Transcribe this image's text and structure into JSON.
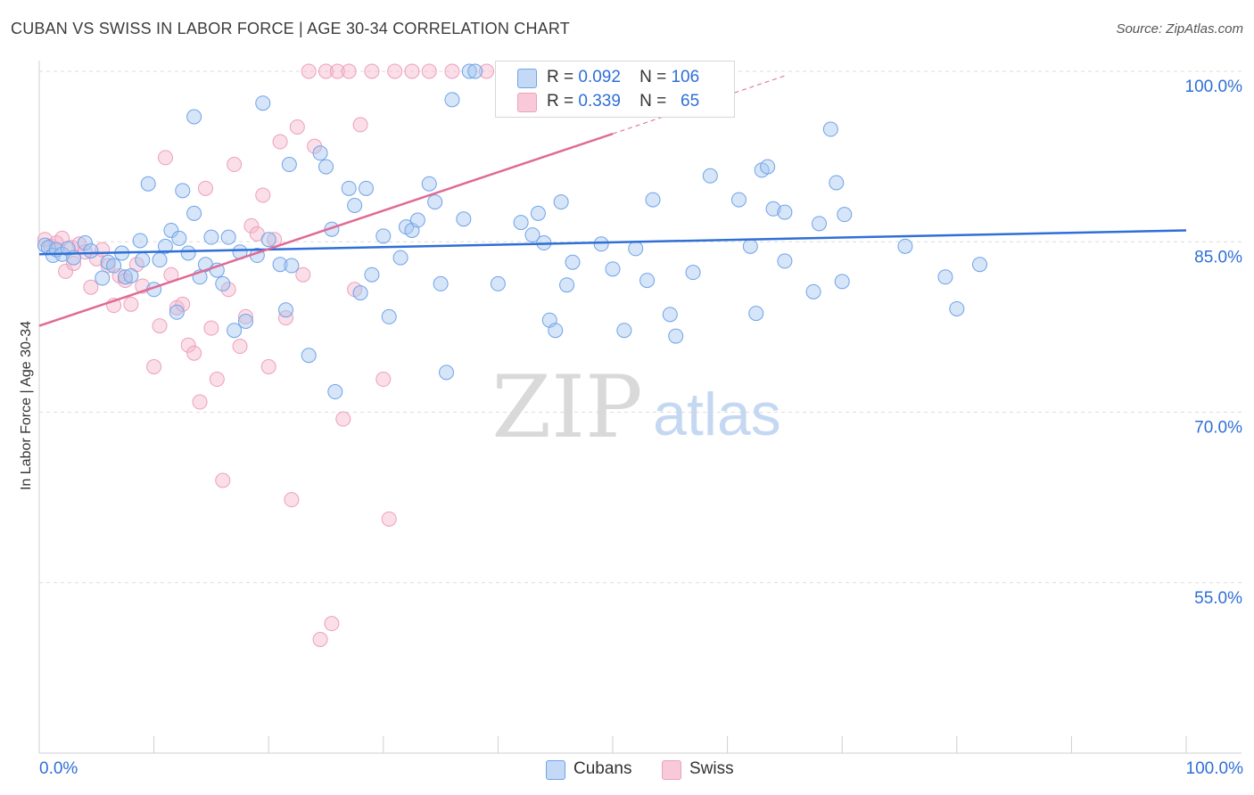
{
  "title": "CUBAN VS SWISS IN LABOR FORCE | AGE 30-34 CORRELATION CHART",
  "source": "Source: ZipAtlas.com",
  "watermark": {
    "zip": "ZIP",
    "atlas": "atlas"
  },
  "legend": {
    "r_label": "R =",
    "n_label": "N =",
    "cubans": {
      "r": "0.092",
      "n": "106"
    },
    "swiss": {
      "r": "0.339",
      "n": "65"
    }
  },
  "chart_data": {
    "type": "scatter",
    "title": "CUBAN VS SWISS IN LABOR FORCE | AGE 30-34 CORRELATION CHART",
    "xlabel": "",
    "ylabel": "In Labor Force | Age 30-34",
    "xlim": [
      0,
      100
    ],
    "ylim": [
      40,
      100
    ],
    "x_tick_labels": {
      "min": "0.0%",
      "max": "100.0%"
    },
    "y_ticks": [
      {
        "value": 100,
        "label": "100.0%"
      },
      {
        "value": 85,
        "label": "85.0%"
      },
      {
        "value": 70,
        "label": "70.0%"
      },
      {
        "value": 55,
        "label": "55.0%"
      }
    ],
    "grid": true,
    "legend_position": "bottom-center",
    "colors": {
      "cubans": "#6fa3e8",
      "swiss": "#ef9fbc",
      "cubans_line": "#2f6fd6",
      "swiss_line": "#e06a94",
      "axis_label": "#2f6fd6"
    },
    "series": [
      {
        "name": "Cubans",
        "r": 0.092,
        "n": 106,
        "trend": {
          "x0": 0,
          "y0": 83.9,
          "x1": 100,
          "y1": 86.0
        },
        "points": [
          [
            0.5,
            84.7
          ],
          [
            0.8,
            84.5
          ],
          [
            1.2,
            83.8
          ],
          [
            1.5,
            84.3
          ],
          [
            2,
            83.9
          ],
          [
            2.5,
            84.4
          ],
          [
            3,
            83.6
          ],
          [
            4,
            84.9
          ],
          [
            4.5,
            84.2
          ],
          [
            5.5,
            81.8
          ],
          [
            6,
            83.2
          ],
          [
            6.5,
            82.9
          ],
          [
            7.5,
            81.9
          ],
          [
            8,
            82.0
          ],
          [
            8.8,
            85.1
          ],
          [
            9,
            83.4
          ],
          [
            9.5,
            90.1
          ],
          [
            10,
            80.8
          ],
          [
            10.5,
            83.4
          ],
          [
            11,
            84.6
          ],
          [
            11.5,
            86.0
          ],
          [
            12,
            78.8
          ],
          [
            12.5,
            89.5
          ],
          [
            13,
            84.0
          ],
          [
            13.5,
            87.5
          ],
          [
            14,
            81.9
          ],
          [
            14.5,
            83.0
          ],
          [
            15,
            85.4
          ],
          [
            15.5,
            82.5
          ],
          [
            16,
            81.3
          ],
          [
            16.5,
            85.4
          ],
          [
            17,
            77.2
          ],
          [
            17.5,
            84.1
          ],
          [
            18,
            78.0
          ],
          [
            19,
            83.8
          ],
          [
            19.5,
            97.2
          ],
          [
            20,
            85.2
          ],
          [
            21,
            83.0
          ],
          [
            21.5,
            79.0
          ],
          [
            21.8,
            91.8
          ],
          [
            22,
            82.9
          ],
          [
            23.5,
            75.0
          ],
          [
            24.5,
            92.8
          ],
          [
            25,
            91.6
          ],
          [
            25.5,
            86.1
          ],
          [
            25.8,
            71.8
          ],
          [
            27,
            89.7
          ],
          [
            27.5,
            88.2
          ],
          [
            28,
            80.5
          ],
          [
            28.5,
            89.7
          ],
          [
            29,
            82.1
          ],
          [
            30,
            85.5
          ],
          [
            30.5,
            78.4
          ],
          [
            31.5,
            83.6
          ],
          [
            32,
            86.3
          ],
          [
            32.5,
            86.0
          ],
          [
            33,
            86.9
          ],
          [
            34,
            90.1
          ],
          [
            34.5,
            88.5
          ],
          [
            35,
            81.3
          ],
          [
            35.5,
            73.5
          ],
          [
            36,
            97.5
          ],
          [
            37,
            87.0
          ],
          [
            37.5,
            100.0
          ],
          [
            38,
            100.0
          ],
          [
            40,
            81.3
          ],
          [
            42,
            86.7
          ],
          [
            43,
            85.6
          ],
          [
            43.5,
            87.5
          ],
          [
            44,
            84.9
          ],
          [
            44.5,
            78.1
          ],
          [
            45,
            77.2
          ],
          [
            45.5,
            88.5
          ],
          [
            46,
            81.2
          ],
          [
            46.5,
            83.2
          ],
          [
            49,
            84.8
          ],
          [
            50,
            82.6
          ],
          [
            51,
            77.2
          ],
          [
            52,
            84.4
          ],
          [
            53,
            81.6
          ],
          [
            53.5,
            88.7
          ],
          [
            55,
            78.6
          ],
          [
            55.5,
            76.7
          ],
          [
            57,
            82.3
          ],
          [
            58.5,
            90.8
          ],
          [
            61,
            88.7
          ],
          [
            62,
            84.6
          ],
          [
            62.5,
            78.7
          ],
          [
            63,
            91.3
          ],
          [
            63.5,
            91.6
          ],
          [
            64,
            87.9
          ],
          [
            65,
            87.6
          ],
          [
            65,
            83.3
          ],
          [
            67.5,
            80.6
          ],
          [
            68,
            86.6
          ],
          [
            69,
            94.9
          ],
          [
            69.5,
            90.2
          ],
          [
            70,
            81.5
          ],
          [
            70.2,
            87.4
          ],
          [
            75.5,
            84.6
          ],
          [
            79,
            81.9
          ],
          [
            80,
            79.1
          ],
          [
            82,
            83.0
          ],
          [
            13.5,
            96.0
          ],
          [
            12.2,
            85.3
          ],
          [
            7.2,
            84.0
          ]
        ]
      },
      {
        "name": "Swiss",
        "r": 0.339,
        "n": 65,
        "trend": {
          "x0": 0,
          "y0": 77.6,
          "x1": 50,
          "y1": 94.5
        },
        "trend_dashed": {
          "x0": 50,
          "y0": 94.5,
          "x1": 65,
          "y1": 99.6
        },
        "points": [
          [
            0.5,
            85.2
          ],
          [
            1,
            84.6
          ],
          [
            1.5,
            84.9
          ],
          [
            2,
            85.3
          ],
          [
            2.3,
            82.4
          ],
          [
            2.8,
            84.5
          ],
          [
            3,
            83.1
          ],
          [
            3.5,
            84.8
          ],
          [
            4,
            84.1
          ],
          [
            4.5,
            81.0
          ],
          [
            5,
            83.5
          ],
          [
            5.5,
            84.3
          ],
          [
            6,
            82.9
          ],
          [
            6.5,
            79.4
          ],
          [
            7,
            82.0
          ],
          [
            7.5,
            81.6
          ],
          [
            8,
            79.5
          ],
          [
            8.5,
            83.0
          ],
          [
            9,
            81.1
          ],
          [
            10,
            74.0
          ],
          [
            10.5,
            77.6
          ],
          [
            11,
            92.4
          ],
          [
            11.5,
            82.1
          ],
          [
            12,
            79.2
          ],
          [
            12.5,
            79.5
          ],
          [
            13,
            75.9
          ],
          [
            13.5,
            75.2
          ],
          [
            14,
            70.9
          ],
          [
            14.5,
            89.7
          ],
          [
            15,
            77.4
          ],
          [
            15.5,
            72.9
          ],
          [
            16,
            64.0
          ],
          [
            16.5,
            80.8
          ],
          [
            17,
            91.8
          ],
          [
            17.5,
            75.8
          ],
          [
            18,
            78.4
          ],
          [
            18.5,
            86.4
          ],
          [
            19,
            85.7
          ],
          [
            19.5,
            89.1
          ],
          [
            20,
            74.0
          ],
          [
            20.5,
            85.2
          ],
          [
            21,
            93.8
          ],
          [
            21.5,
            78.3
          ],
          [
            22,
            62.3
          ],
          [
            22.5,
            95.1
          ],
          [
            23,
            82.1
          ],
          [
            23.5,
            100.0
          ],
          [
            24,
            93.4
          ],
          [
            24.5,
            50.0
          ],
          [
            25,
            100.0
          ],
          [
            25.5,
            51.4
          ],
          [
            26,
            100.0
          ],
          [
            26.5,
            69.4
          ],
          [
            27,
            100.0
          ],
          [
            27.5,
            80.8
          ],
          [
            28,
            95.3
          ],
          [
            29,
            100.0
          ],
          [
            30,
            72.9
          ],
          [
            30.5,
            60.6
          ],
          [
            31,
            100.0
          ],
          [
            32.5,
            100.0
          ],
          [
            34,
            100.0
          ],
          [
            36,
            100.0
          ],
          [
            39,
            100.0
          ],
          [
            42,
            100.0
          ]
        ]
      }
    ]
  }
}
